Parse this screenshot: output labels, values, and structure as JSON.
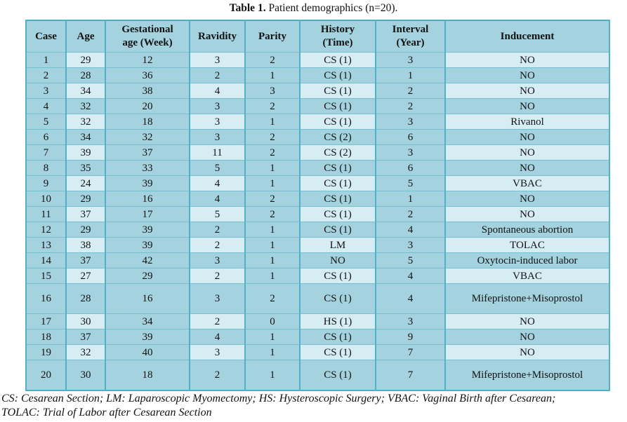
{
  "title": {
    "bold": "Table 1.",
    "rest": " Patient demographics (n=20)."
  },
  "table": {
    "headers": [
      "Case",
      "Age",
      "Gestational\nage (Week)",
      "Ravidity",
      "Parity",
      "History\n(Time)",
      "Interval\n(Year)",
      "Inducement"
    ],
    "rows": [
      [
        1,
        29,
        12,
        3,
        2,
        "CS (1)",
        3,
        "NO"
      ],
      [
        2,
        28,
        36,
        2,
        1,
        "CS (1)",
        1,
        "NO"
      ],
      [
        3,
        34,
        38,
        4,
        3,
        "CS (1)",
        2,
        "NO"
      ],
      [
        4,
        32,
        20,
        3,
        2,
        "CS (1)",
        2,
        "NO"
      ],
      [
        5,
        32,
        18,
        3,
        1,
        "CS (1)",
        3,
        "Rivanol"
      ],
      [
        6,
        34,
        32,
        3,
        2,
        "CS (2)",
        6,
        "NO"
      ],
      [
        7,
        39,
        37,
        11,
        2,
        "CS (2)",
        3,
        "NO"
      ],
      [
        8,
        35,
        33,
        5,
        1,
        "CS (1)",
        6,
        "NO"
      ],
      [
        9,
        24,
        39,
        4,
        1,
        "CS (1)",
        5,
        "VBAC"
      ],
      [
        10,
        29,
        16,
        4,
        2,
        "CS (1)",
        1,
        "NO"
      ],
      [
        11,
        37,
        17,
        5,
        2,
        "CS (1)",
        2,
        "NO"
      ],
      [
        12,
        29,
        39,
        2,
        1,
        "CS (1)",
        4,
        "Spontaneous abortion"
      ],
      [
        13,
        38,
        39,
        2,
        1,
        "LM",
        3,
        "TOLAC"
      ],
      [
        14,
        37,
        42,
        3,
        1,
        "NO",
        5,
        "Oxytocin-induced labor"
      ],
      [
        15,
        27,
        29,
        2,
        1,
        "CS (1)",
        4,
        "VBAC"
      ],
      [
        16,
        28,
        16,
        3,
        2,
        "CS (1)",
        4,
        "Mifepristone+Misoprostol"
      ],
      [
        17,
        30,
        34,
        2,
        0,
        "HS (1)",
        3,
        "NO"
      ],
      [
        18,
        37,
        39,
        4,
        1,
        "CS (1)",
        9,
        "NO"
      ],
      [
        19,
        32,
        40,
        3,
        1,
        "CS (1)",
        7,
        "NO"
      ],
      [
        20,
        30,
        18,
        2,
        1,
        "CS (1)",
        7,
        "Mifepristone+Misoprostol"
      ]
    ]
  },
  "footnote": {
    "lines": [
      "CS: Cesarean Section; LM: Laparoscopic Myomectomy; HS: Hysteroscopic Surgery; VBAC: Vaginal Birth after Cesarean;",
      "TOLAC: Trial of Labor after Cesarean Section"
    ]
  },
  "colors": {
    "page_bg": "#ffffff",
    "cell_dark": "#a4d2de",
    "cell_light": "#d6edf4",
    "border_strong": "#53b0c6",
    "border_soft": "#74c0d0",
    "outer_border": "#4fadc2",
    "text": "#121212"
  }
}
